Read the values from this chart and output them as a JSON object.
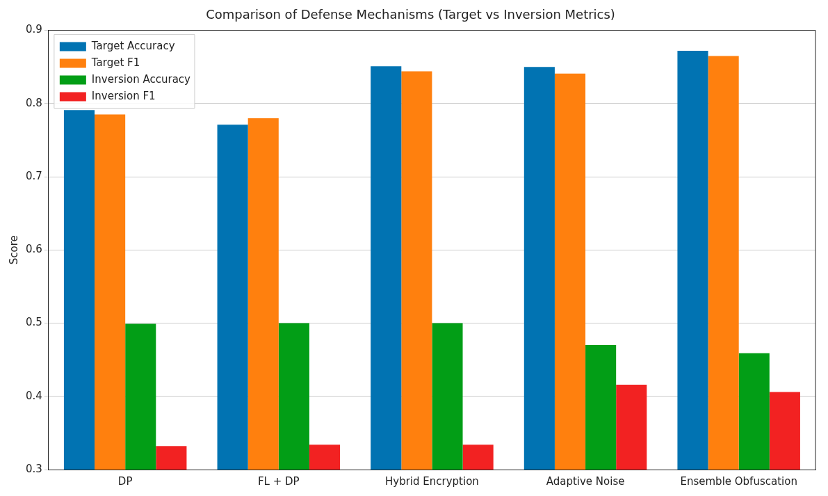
{
  "chart_data": {
    "type": "bar",
    "title": "Comparison of Defense Mechanisms (Target vs Inversion Metrics)",
    "ylabel": "Score",
    "categories": [
      "DP",
      "FL + DP",
      "Hybrid Encryption",
      "Adaptive Noise",
      "Ensemble Obfuscation"
    ],
    "series": [
      {
        "name": "Target Accuracy",
        "color": "#0173b2",
        "values": [
          0.791,
          0.771,
          0.851,
          0.85,
          0.872
        ]
      },
      {
        "name": "Target F1",
        "color": "#ff800e",
        "values": [
          0.785,
          0.78,
          0.844,
          0.841,
          0.865
        ]
      },
      {
        "name": "Inversion Accuracy",
        "color": "#029e16",
        "values": [
          0.499,
          0.5,
          0.5,
          0.47,
          0.459
        ]
      },
      {
        "name": "Inversion F1",
        "color": "#f22222",
        "values": [
          0.332,
          0.334,
          0.334,
          0.416,
          0.406
        ]
      }
    ],
    "ylim": [
      0.3,
      0.9
    ],
    "yticks": [
      0.3,
      0.4,
      0.5,
      0.6,
      0.7,
      0.8,
      0.9
    ],
    "grid": "y",
    "legend": "top left"
  }
}
